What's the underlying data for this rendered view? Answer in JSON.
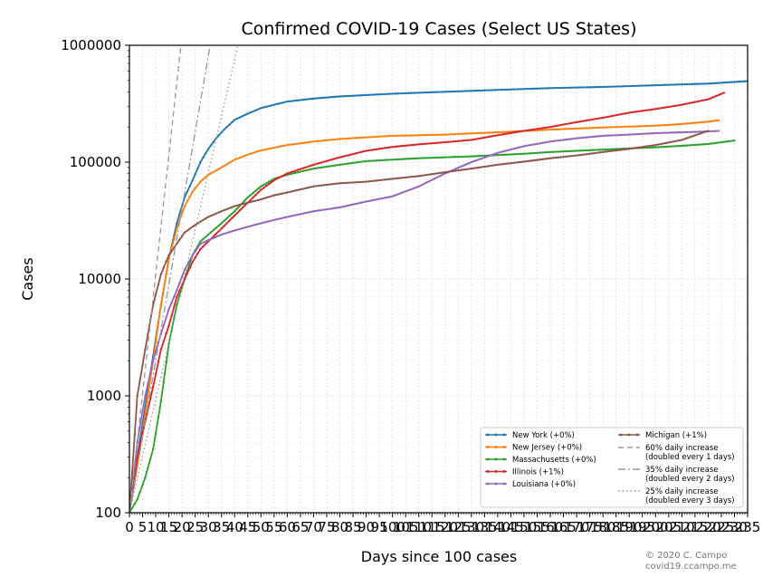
{
  "chart_data": {
    "type": "line",
    "title": "Confirmed COVID-19 Cases (Select US States)",
    "xlabel": "Days since 100 cases",
    "ylabel": "Cases",
    "xlim": [
      0,
      235
    ],
    "ylim": [
      100,
      1000000
    ],
    "yscale": "log",
    "x_ticks": [
      0,
      5,
      10,
      15,
      20,
      25,
      30,
      35,
      40,
      45,
      50,
      55,
      60,
      65,
      70,
      75,
      80,
      85,
      90,
      95,
      100,
      105,
      110,
      115,
      120,
      125,
      130,
      135,
      140,
      145,
      150,
      155,
      160,
      165,
      170,
      175,
      180,
      185,
      190,
      195,
      200,
      205,
      210,
      215,
      220,
      225,
      230,
      235
    ],
    "y_ticks": [
      {
        "value": 100,
        "label": "100"
      },
      {
        "value": 1000,
        "label": "1000"
      },
      {
        "value": 10000,
        "label": "10000"
      },
      {
        "value": 100000,
        "label": "100000"
      },
      {
        "value": 1000000,
        "label": "1000000"
      }
    ],
    "grid": true,
    "legend_position": "lower-right",
    "series": [
      {
        "name": "New York (+0%)",
        "color": "#1f77b4",
        "style": "solid-markers",
        "x": [
          0,
          3,
          6,
          9,
          12,
          15,
          18,
          21,
          24,
          27,
          30,
          33,
          36,
          40,
          45,
          50,
          55,
          60,
          70,
          80,
          90,
          100,
          120,
          140,
          160,
          180,
          200,
          220,
          236
        ],
        "y": [
          100,
          300,
          800,
          2200,
          6000,
          15000,
          30000,
          50000,
          70000,
          100000,
          130000,
          160000,
          190000,
          230000,
          260000,
          290000,
          310000,
          330000,
          350000,
          365000,
          375000,
          385000,
          400000,
          415000,
          430000,
          440000,
          455000,
          470000,
          495000
        ]
      },
      {
        "name": "New Jersey (+0%)",
        "color": "#ff7f0e",
        "style": "solid-markers",
        "x": [
          0,
          3,
          6,
          9,
          12,
          15,
          18,
          21,
          24,
          27,
          30,
          35,
          40,
          45,
          50,
          60,
          70,
          80,
          90,
          100,
          120,
          140,
          160,
          180,
          200,
          210,
          220,
          224
        ],
        "y": [
          100,
          250,
          700,
          2000,
          6000,
          15000,
          27000,
          42000,
          56000,
          68000,
          78000,
          90000,
          105000,
          116000,
          126000,
          140000,
          150000,
          158000,
          163000,
          168000,
          172000,
          180000,
          190000,
          198000,
          205000,
          212000,
          222000,
          228000
        ]
      },
      {
        "name": "Massachusetts (+0%)",
        "color": "#2ca02c",
        "style": "solid-markers",
        "x": [
          0,
          3,
          6,
          9,
          12,
          15,
          18,
          21,
          24,
          27,
          30,
          35,
          40,
          45,
          50,
          55,
          60,
          70,
          80,
          90,
          100,
          110,
          120,
          130,
          140,
          150,
          160,
          170,
          180,
          190,
          200,
          210,
          220,
          230
        ],
        "y": [
          100,
          130,
          200,
          350,
          900,
          2800,
          6000,
          10000,
          16000,
          21000,
          24000,
          30000,
          38000,
          50000,
          62000,
          72000,
          78000,
          88000,
          95000,
          102000,
          105000,
          108000,
          110000,
          112000,
          115000,
          118000,
          122000,
          125000,
          128000,
          131000,
          134000,
          138000,
          143000,
          153000
        ]
      },
      {
        "name": "Illinois (+1%)",
        "color": "#d62728",
        "style": "solid-markers",
        "x": [
          0,
          3,
          6,
          9,
          12,
          15,
          18,
          21,
          24,
          27,
          30,
          35,
          40,
          45,
          50,
          55,
          60,
          70,
          80,
          90,
          100,
          110,
          120,
          130,
          140,
          150,
          160,
          170,
          180,
          190,
          200,
          210,
          220,
          226
        ],
        "y": [
          100,
          300,
          600,
          1200,
          2500,
          4000,
          7000,
          10000,
          14000,
          18000,
          21000,
          27000,
          35000,
          45000,
          58000,
          70000,
          80000,
          95000,
          110000,
          125000,
          135000,
          142000,
          148000,
          155000,
          170000,
          185000,
          200000,
          220000,
          240000,
          265000,
          285000,
          310000,
          345000,
          392000
        ]
      },
      {
        "name": "Louisiana (+0%)",
        "color": "#9467bd",
        "style": "solid-markers",
        "x": [
          0,
          3,
          6,
          9,
          12,
          15,
          18,
          21,
          24,
          27,
          30,
          35,
          40,
          45,
          50,
          55,
          60,
          70,
          80,
          90,
          100,
          110,
          120,
          130,
          140,
          150,
          160,
          170,
          180,
          190,
          200,
          210,
          220,
          224
        ],
        "y": [
          100,
          400,
          1000,
          2000,
          3400,
          5500,
          8000,
          12000,
          16000,
          20000,
          21500,
          24000,
          26000,
          28000,
          30000,
          32000,
          34000,
          38000,
          41000,
          46000,
          51000,
          62000,
          80000,
          100000,
          120000,
          137000,
          150000,
          160000,
          168000,
          172000,
          177000,
          180000,
          183000,
          185000
        ]
      },
      {
        "name": "Michigan (+1%)",
        "color": "#8c564b",
        "style": "solid-markers",
        "x": [
          0,
          3,
          6,
          9,
          12,
          15,
          18,
          21,
          24,
          27,
          30,
          35,
          40,
          45,
          50,
          55,
          60,
          70,
          80,
          90,
          100,
          110,
          120,
          130,
          140,
          150,
          160,
          170,
          180,
          190,
          200,
          210,
          220
        ],
        "y": [
          100,
          1000,
          2500,
          6000,
          11000,
          16000,
          20000,
          25000,
          28000,
          31000,
          34000,
          38000,
          42000,
          45000,
          48000,
          52000,
          55000,
          62000,
          66000,
          68000,
          72000,
          76000,
          82000,
          88000,
          95000,
          101000,
          108000,
          114000,
          122000,
          130000,
          140000,
          155000,
          185000
        ]
      },
      {
        "name": "60% daily increase\n(doubled every 1 days)",
        "color": "#999999",
        "style": "dashed",
        "rate": 1.6,
        "x": [
          0,
          20
        ],
        "y": [
          100,
          1208926
        ]
      },
      {
        "name": "35% daily increase\n(doubled every 2 days)",
        "color": "#999999",
        "style": "dashdot",
        "rate": 1.35,
        "x": [
          0,
          31
        ],
        "y": [
          100,
          1098000
        ]
      },
      {
        "name": "25% daily increase\n(doubled every 3 days)",
        "color": "#999999",
        "style": "dotted",
        "rate": 1.25,
        "x": [
          0,
          42
        ],
        "y": [
          100,
          1185000
        ]
      }
    ]
  },
  "watermark": {
    "line1": "© 2020 C. Campo",
    "line2": "covid19.ccampo.me"
  }
}
